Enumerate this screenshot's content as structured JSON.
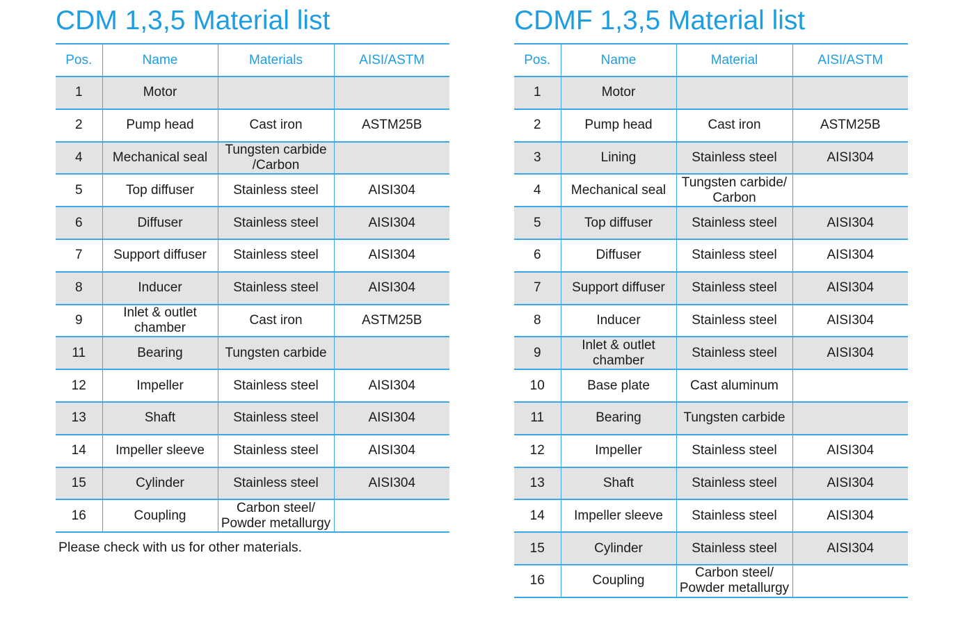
{
  "left": {
    "title": "CDM 1,3,5 Material list",
    "headers": [
      "Pos.",
      "Name",
      "Materials",
      "AISI/ASTM"
    ],
    "rows": [
      {
        "pos": "1",
        "name": "Motor",
        "material": "",
        "aisi": ""
      },
      {
        "pos": "2",
        "name": "Pump head",
        "material": "Cast iron",
        "aisi": "ASTM25B"
      },
      {
        "pos": "4",
        "name": "Mechanical seal",
        "material": "Tungsten carbide\n/Carbon",
        "aisi": ""
      },
      {
        "pos": "5",
        "name": "Top diffuser",
        "material": "Stainless steel",
        "aisi": "AISI304"
      },
      {
        "pos": "6",
        "name": "Diffuser",
        "material": "Stainless steel",
        "aisi": "AISI304"
      },
      {
        "pos": "7",
        "name": "Support diffuser",
        "material": "Stainless steel",
        "aisi": "AISI304"
      },
      {
        "pos": "8",
        "name": "Inducer",
        "material": "Stainless steel",
        "aisi": "AISI304"
      },
      {
        "pos": "9",
        "name": "Inlet & outlet\nchamber",
        "material": "Cast iron",
        "aisi": "ASTM25B"
      },
      {
        "pos": "11",
        "name": "Bearing",
        "material": "Tungsten carbide",
        "aisi": ""
      },
      {
        "pos": "12",
        "name": "Impeller",
        "material": "Stainless steel",
        "aisi": "AISI304"
      },
      {
        "pos": "13",
        "name": "Shaft",
        "material": "Stainless steel",
        "aisi": "AISI304"
      },
      {
        "pos": "14",
        "name": "Impeller sleeve",
        "material": "Stainless steel",
        "aisi": "AISI304"
      },
      {
        "pos": "15",
        "name": "Cylinder",
        "material": "Stainless steel",
        "aisi": "AISI304"
      },
      {
        "pos": "16",
        "name": "Coupling",
        "material": "Carbon steel/\nPowder metallurgy",
        "aisi": ""
      }
    ],
    "note": "Please check with us for other materials."
  },
  "right": {
    "title": "CDMF 1,3,5 Material list",
    "headers": [
      "Pos.",
      "Name",
      "Material",
      "AISI/ASTM"
    ],
    "rows": [
      {
        "pos": "1",
        "name": "Motor",
        "material": "",
        "aisi": ""
      },
      {
        "pos": "2",
        "name": "Pump head",
        "material": "Cast iron",
        "aisi": "ASTM25B"
      },
      {
        "pos": "3",
        "name": "Lining",
        "material": "Stainless steel",
        "aisi": "AISI304"
      },
      {
        "pos": "4",
        "name": "Mechanical seal",
        "material": "Tungsten carbide/\nCarbon",
        "aisi": ""
      },
      {
        "pos": "5",
        "name": "Top diffuser",
        "material": "Stainless steel",
        "aisi": "AISI304"
      },
      {
        "pos": "6",
        "name": "Diffuser",
        "material": "Stainless steel",
        "aisi": "AISI304"
      },
      {
        "pos": "7",
        "name": "Support diffuser",
        "material": "Stainless steel",
        "aisi": "AISI304"
      },
      {
        "pos": "8",
        "name": "Inducer",
        "material": "Stainless steel",
        "aisi": "AISI304"
      },
      {
        "pos": "9",
        "name": "Inlet & outlet\nchamber",
        "material": "Stainless steel",
        "aisi": "AISI304"
      },
      {
        "pos": "10",
        "name": "Base plate",
        "material": "Cast aluminum",
        "aisi": ""
      },
      {
        "pos": "11",
        "name": "Bearing",
        "material": "Tungsten carbide",
        "aisi": ""
      },
      {
        "pos": "12",
        "name": "Impeller",
        "material": "Stainless steel",
        "aisi": "AISI304"
      },
      {
        "pos": "13",
        "name": "Shaft",
        "material": "Stainless steel",
        "aisi": "AISI304"
      },
      {
        "pos": "14",
        "name": "Impeller sleeve",
        "material": "Stainless steel",
        "aisi": "AISI304"
      },
      {
        "pos": "15",
        "name": "Cylinder",
        "material": "Stainless steel",
        "aisi": "AISI304"
      },
      {
        "pos": "16",
        "name": "Coupling",
        "material": "Carbon steel/\nPowder metallurgy",
        "aisi": ""
      }
    ]
  }
}
